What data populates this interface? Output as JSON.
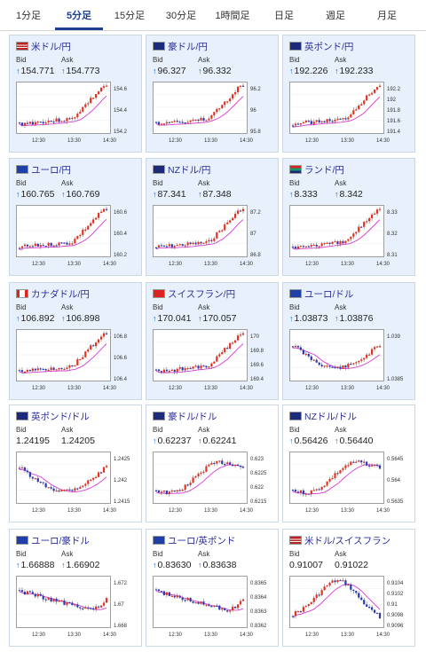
{
  "tabs": [
    {
      "label": "1分足"
    },
    {
      "label": "5分足",
      "active": true
    },
    {
      "label": "15分足"
    },
    {
      "label": "30分足"
    },
    {
      "label": "1時間足"
    },
    {
      "label": "日足"
    },
    {
      "label": "週足"
    },
    {
      "label": "月足"
    }
  ],
  "labels": {
    "bid": "Bid",
    "ask": "Ask"
  },
  "colors": {
    "up": "#e8301f",
    "down": "#2a3ab6",
    "ma": "#d63ad0",
    "accent": "#1b3f91"
  },
  "pairs": [
    {
      "name": "米ドル/円",
      "flag": "flag-us-icon",
      "bid": "154.771",
      "ask": "154.773",
      "trend": "up",
      "yticks": [
        "154.6",
        "154.4",
        "154.2"
      ],
      "xticks": [
        "12:30",
        "13:30",
        "14:30"
      ],
      "pattern": "rise"
    },
    {
      "name": "豪ドル/円",
      "flag": "flag-au-icon",
      "bid": "96.327",
      "ask": "96.332",
      "trend": "up",
      "yticks": [
        "96.2",
        "96",
        "95.8"
      ],
      "xticks": [
        "12:30",
        "13:30",
        "14:30"
      ],
      "pattern": "rise"
    },
    {
      "name": "英ポンド/円",
      "flag": "flag-gb-icon",
      "bid": "192.226",
      "ask": "192.233",
      "trend": "up",
      "yticks": [
        "192.2",
        "192",
        "191.8",
        "191.6",
        "191.4"
      ],
      "xticks": [
        "12:30",
        "13:30",
        "14:30"
      ],
      "pattern": "rise"
    },
    {
      "name": "ユーロ/円",
      "flag": "flag-eu-icon",
      "bid": "160.765",
      "ask": "160.769",
      "trend": "up",
      "yticks": [
        "160.6",
        "160.4",
        "160.2"
      ],
      "xticks": [
        "12:30",
        "13:30",
        "14:30"
      ],
      "pattern": "rise"
    },
    {
      "name": "NZドル/円",
      "flag": "flag-nz-icon",
      "bid": "87.341",
      "ask": "87.348",
      "trend": "up",
      "yticks": [
        "87.2",
        "87",
        "86.8"
      ],
      "xticks": [
        "12:30",
        "13:30",
        "14:30"
      ],
      "pattern": "rise"
    },
    {
      "name": "ランド/円",
      "flag": "flag-za-icon",
      "bid": "8.333",
      "ask": "8.342",
      "trend": "up",
      "yticks": [
        "8.33",
        "8.32",
        "8.31"
      ],
      "xticks": [
        "12:30",
        "13:30",
        "14:30"
      ],
      "pattern": "rise"
    },
    {
      "name": "カナダドル/円",
      "flag": "flag-ca-icon",
      "bid": "106.892",
      "ask": "106.898",
      "trend": "up",
      "yticks": [
        "106.8",
        "106.6",
        "106.4"
      ],
      "xticks": [
        "12:30",
        "13:30",
        "14:30"
      ],
      "pattern": "rise"
    },
    {
      "name": "スイスフラン/円",
      "flag": "flag-ch-icon",
      "bid": "170.041",
      "ask": "170.057",
      "trend": "up",
      "yticks": [
        "170",
        "169.8",
        "169.6",
        "169.4"
      ],
      "xticks": [
        "12:30",
        "13:30",
        "14:30"
      ],
      "pattern": "rise"
    },
    {
      "name": "ユーロ/ドル",
      "flag": "flag-eu-icon",
      "bid": "1.03873",
      "ask": "1.03876",
      "trend": "up",
      "yticks": [
        "1.039",
        "1.0385"
      ],
      "xticks": [
        "12:30",
        "13:30",
        "14:30"
      ],
      "pattern": "dip"
    },
    {
      "name": "英ポンド/ドル",
      "flag": "flag-gb-icon",
      "bid": "1.24195",
      "ask": "1.24205",
      "trend": "flat",
      "yticks": [
        "1.2425",
        "1.242",
        "1.2415"
      ],
      "xticks": [
        "12:30",
        "13:30",
        "14:30"
      ],
      "pattern": "dip"
    },
    {
      "name": "豪ドル/ドル",
      "flag": "flag-au-icon",
      "bid": "0.62237",
      "ask": "0.62241",
      "trend": "up",
      "yticks": [
        "0.623",
        "0.6225",
        "0.622",
        "0.6215"
      ],
      "xticks": [
        "12:30",
        "13:30",
        "14:30"
      ],
      "pattern": "recover"
    },
    {
      "name": "NZドル/ドル",
      "flag": "flag-nz-icon",
      "bid": "0.56426",
      "ask": "0.56440",
      "trend": "up",
      "yticks": [
        "0.5645",
        "0.564",
        "0.5635"
      ],
      "xticks": [
        "12:30",
        "13:30",
        "14:30"
      ],
      "pattern": "recover"
    },
    {
      "name": "ユーロ/豪ドル",
      "flag": "flag-eu-icon",
      "bid": "1.66888",
      "ask": "1.66902",
      "trend": "up",
      "yticks": [
        "1.672",
        "1.67",
        "1.668"
      ],
      "xticks": [
        "12:30",
        "13:30",
        "14:30"
      ],
      "pattern": "fall"
    },
    {
      "name": "ユーロ/英ポンド",
      "flag": "flag-eu-icon",
      "bid": "0.83630",
      "ask": "0.83638",
      "trend": "up",
      "yticks": [
        "0.8365",
        "0.8364",
        "0.8363",
        "0.8362"
      ],
      "xticks": [
        "12:30",
        "13:30",
        "14:30"
      ],
      "pattern": "fall"
    },
    {
      "name": "米ドル/スイスフラン",
      "flag": "flag-us-icon",
      "bid": "0.91007",
      "ask": "0.91022",
      "trend": "flat",
      "yticks": [
        "0.9104",
        "0.9102",
        "0.91",
        "0.9098",
        "0.9096"
      ],
      "xticks": [
        "12:30",
        "13:30",
        "14:30"
      ],
      "pattern": "hump"
    }
  ]
}
